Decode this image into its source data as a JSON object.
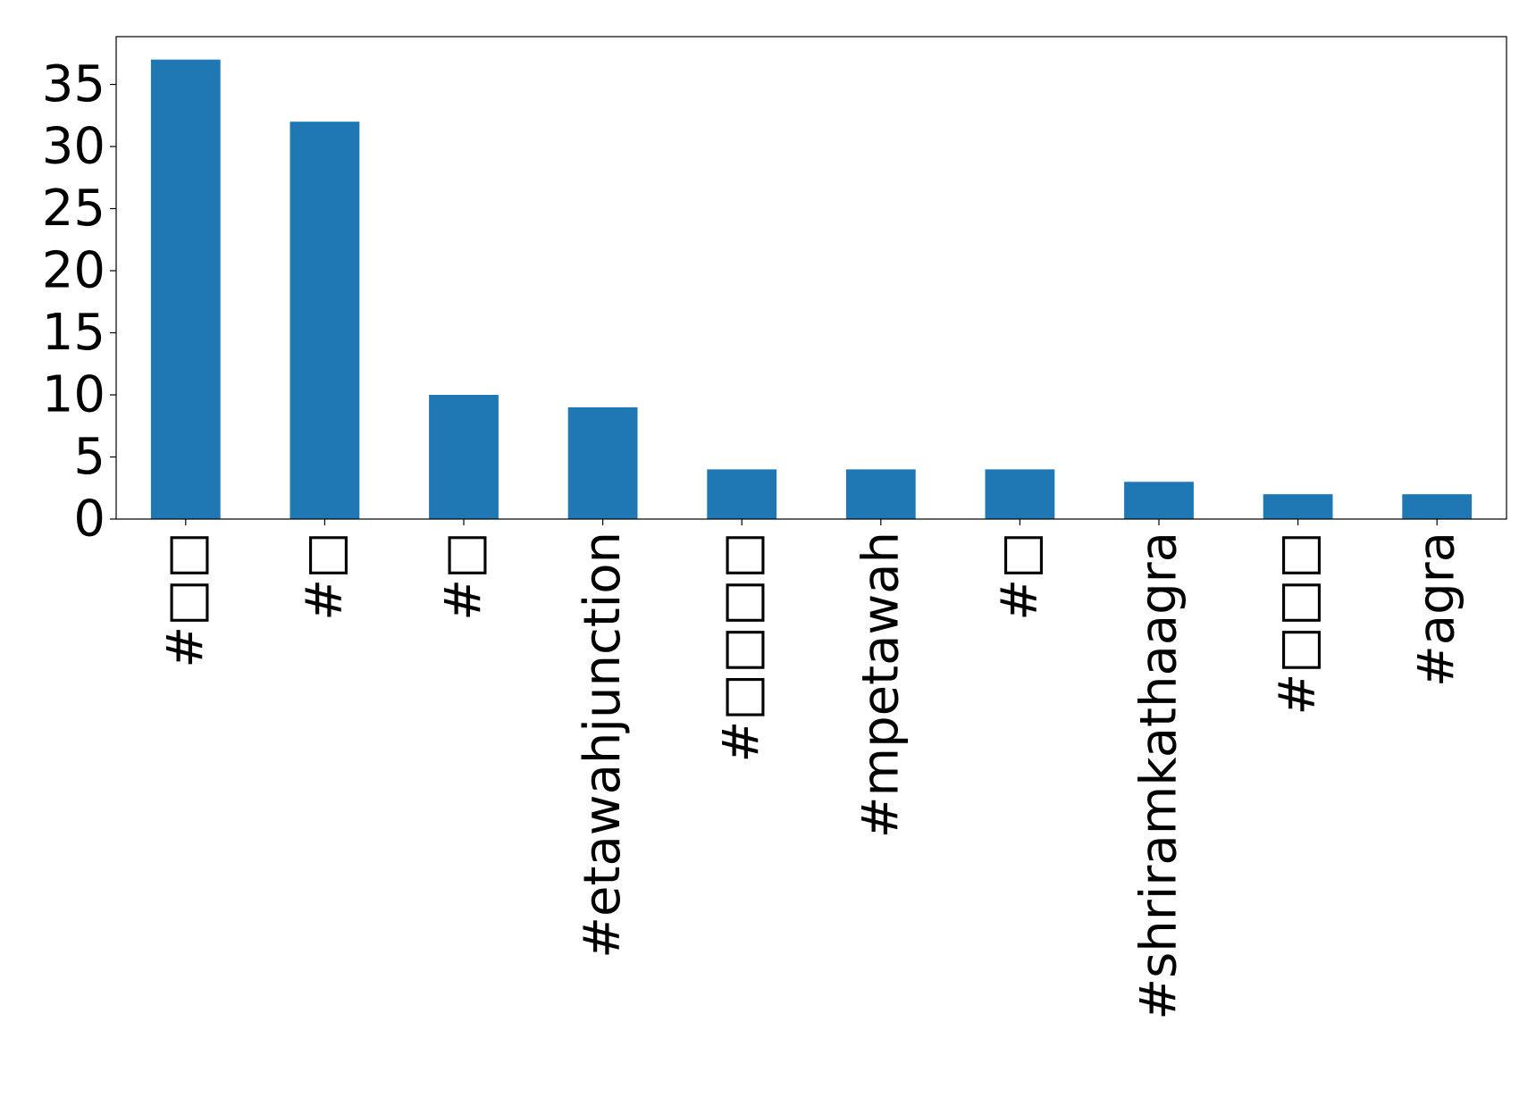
{
  "chart_data": {
    "type": "bar",
    "categories": [
      "#□□",
      "#□",
      "#□",
      "#etawahjunction",
      "#□□□□",
      "#mpetawah",
      "#□",
      "#shriramkathaagra",
      "#□□□",
      "#agra"
    ],
    "values": [
      37,
      32,
      10,
      9,
      4,
      4,
      4,
      3,
      2,
      2
    ],
    "yticks": [
      0,
      5,
      10,
      15,
      20,
      25,
      30,
      35
    ],
    "ylim": [
      0,
      38.85
    ],
    "bar_color": "#1f77b4",
    "grid": false,
    "title": "",
    "xlabel": "",
    "ylabel": ""
  }
}
